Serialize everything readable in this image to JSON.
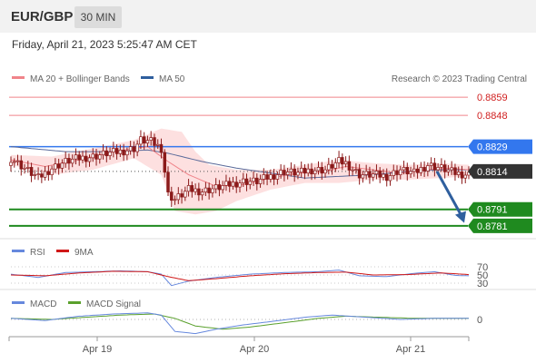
{
  "header": {
    "pair": "EUR/GBP",
    "timeframe": "30 MIN",
    "datetime": "Friday, April 21, 2023 5:25:47 AM CET"
  },
  "legend": {
    "ma20": "MA 20 + Bollinger Bands",
    "ma50": "MA 50",
    "credit": "Research © 2023 Trading Central",
    "rsi": "RSI",
    "rsi_ma": "9MA",
    "macd": "MACD",
    "macd_signal": "MACD Signal"
  },
  "colors": {
    "resistance": "#f0848a",
    "pivot": "#3377ee",
    "support": "#1f8a1f",
    "current": "#333333",
    "ma20": "#f0848a",
    "ma50": "#5a6a9a",
    "band": "#fde0e0",
    "candle": "#8b1a1a",
    "arrow": "#2f5f9e",
    "rsi": "#6688dd",
    "rsi_ma": "#d01818",
    "macd": "#6688dd",
    "macd_signal": "#5aa02c"
  },
  "chart_data": {
    "type": "candlestick",
    "instrument": "EUR/GBP",
    "timeframe": "30 MIN",
    "x_ticks": [
      "Apr 19",
      "Apr 20",
      "Apr 21"
    ],
    "price_range": [
      0.8776,
      0.8864
    ],
    "levels": [
      {
        "value": 0.8859,
        "label": "0.8859",
        "kind": "resistance"
      },
      {
        "value": 0.8848,
        "label": "0.8848",
        "kind": "resistance"
      },
      {
        "value": 0.8829,
        "label": "0.8829",
        "kind": "pivot"
      },
      {
        "value": 0.8814,
        "label": "0.8814",
        "kind": "current"
      },
      {
        "value": 0.8791,
        "label": "0.8791",
        "kind": "support"
      },
      {
        "value": 0.8781,
        "label": "0.8781",
        "kind": "support"
      }
    ],
    "price_path": [
      [
        0,
        0.8822
      ],
      [
        4,
        0.8816
      ],
      [
        8,
        0.881
      ],
      [
        12,
        0.8816
      ],
      [
        16,
        0.882
      ],
      [
        20,
        0.8822
      ],
      [
        24,
        0.8823
      ],
      [
        28,
        0.8825
      ],
      [
        32,
        0.8826
      ],
      [
        36,
        0.8828
      ],
      [
        38,
        0.8833
      ],
      [
        41,
        0.8832
      ],
      [
        44,
        0.8828
      ],
      [
        46,
        0.88
      ],
      [
        48,
        0.8797
      ],
      [
        52,
        0.8803
      ],
      [
        56,
        0.8802
      ],
      [
        60,
        0.8804
      ],
      [
        64,
        0.8806
      ],
      [
        68,
        0.8808
      ],
      [
        72,
        0.8808
      ],
      [
        76,
        0.8811
      ],
      [
        80,
        0.8814
      ],
      [
        84,
        0.8813
      ],
      [
        88,
        0.8815
      ],
      [
        92,
        0.8815
      ],
      [
        96,
        0.882
      ],
      [
        98,
        0.8819
      ],
      [
        102,
        0.8812
      ],
      [
        106,
        0.8812
      ],
      [
        110,
        0.8811
      ],
      [
        114,
        0.8815
      ],
      [
        118,
        0.8813
      ],
      [
        122,
        0.8818
      ],
      [
        126,
        0.8816
      ],
      [
        130,
        0.8813
      ],
      [
        134,
        0.8812
      ]
    ],
    "ma20_path": [
      [
        0,
        0.8821
      ],
      [
        10,
        0.8817
      ],
      [
        20,
        0.8821
      ],
      [
        30,
        0.8826
      ],
      [
        40,
        0.8829
      ],
      [
        46,
        0.882
      ],
      [
        52,
        0.8812
      ],
      [
        60,
        0.8805
      ],
      [
        68,
        0.8806
      ],
      [
        76,
        0.881
      ],
      [
        84,
        0.8813
      ],
      [
        92,
        0.8814
      ],
      [
        98,
        0.8817
      ],
      [
        106,
        0.8815
      ],
      [
        114,
        0.8813
      ],
      [
        122,
        0.8815
      ],
      [
        128,
        0.8816
      ],
      [
        134,
        0.8815
      ]
    ],
    "ma50_path": [
      [
        0,
        0.8829
      ],
      [
        16,
        0.8826
      ],
      [
        30,
        0.8826
      ],
      [
        40,
        0.8827
      ],
      [
        46,
        0.8825
      ],
      [
        56,
        0.882
      ],
      [
        66,
        0.8816
      ],
      [
        76,
        0.8813
      ],
      [
        86,
        0.881
      ],
      [
        96,
        0.8811
      ],
      [
        106,
        0.8812
      ],
      [
        116,
        0.8814
      ],
      [
        126,
        0.8815
      ],
      [
        134,
        0.8815
      ]
    ],
    "band_upper": [
      [
        0,
        0.8824
      ],
      [
        12,
        0.8823
      ],
      [
        24,
        0.8828
      ],
      [
        36,
        0.8833
      ],
      [
        44,
        0.884
      ],
      [
        50,
        0.8838
      ],
      [
        54,
        0.8826
      ],
      [
        58,
        0.8818
      ],
      [
        66,
        0.8815
      ],
      [
        76,
        0.8815
      ],
      [
        86,
        0.8818
      ],
      [
        96,
        0.8821
      ],
      [
        106,
        0.8819
      ],
      [
        116,
        0.8818
      ],
      [
        126,
        0.8819
      ],
      [
        134,
        0.8818
      ]
    ],
    "band_lower": [
      [
        0,
        0.8818
      ],
      [
        12,
        0.8812
      ],
      [
        24,
        0.8815
      ],
      [
        36,
        0.8822
      ],
      [
        44,
        0.8812
      ],
      [
        48,
        0.879
      ],
      [
        54,
        0.8788
      ],
      [
        60,
        0.879
      ],
      [
        66,
        0.8796
      ],
      [
        76,
        0.8803
      ],
      [
        86,
        0.8807
      ],
      [
        96,
        0.8807
      ],
      [
        106,
        0.8809
      ],
      [
        116,
        0.8809
      ],
      [
        126,
        0.881
      ],
      [
        134,
        0.8811
      ]
    ],
    "forecast": {
      "from": 0.8814,
      "to": 0.8785
    },
    "rsi": {
      "levels": [
        70,
        50,
        30
      ],
      "rsi_path": [
        [
          0,
          52
        ],
        [
          8,
          44
        ],
        [
          16,
          56
        ],
        [
          24,
          58
        ],
        [
          32,
          60
        ],
        [
          40,
          58
        ],
        [
          44,
          52
        ],
        [
          47,
          24
        ],
        [
          52,
          35
        ],
        [
          60,
          44
        ],
        [
          70,
          52
        ],
        [
          80,
          56
        ],
        [
          90,
          58
        ],
        [
          96,
          62
        ],
        [
          102,
          48
        ],
        [
          110,
          46
        ],
        [
          118,
          54
        ],
        [
          124,
          58
        ],
        [
          130,
          49
        ],
        [
          134,
          48
        ]
      ],
      "rsi_ma_path": [
        [
          0,
          50
        ],
        [
          10,
          48
        ],
        [
          20,
          55
        ],
        [
          30,
          59
        ],
        [
          40,
          58
        ],
        [
          46,
          46
        ],
        [
          52,
          36
        ],
        [
          60,
          41
        ],
        [
          70,
          48
        ],
        [
          80,
          53
        ],
        [
          90,
          56
        ],
        [
          98,
          57
        ],
        [
          106,
          50
        ],
        [
          116,
          51
        ],
        [
          126,
          55
        ],
        [
          134,
          51
        ]
      ]
    },
    "macd": {
      "zero_label": "0",
      "macd_path": [
        [
          0,
          0.0001
        ],
        [
          10,
          -0.0001
        ],
        [
          20,
          0.0003
        ],
        [
          30,
          0.0005
        ],
        [
          40,
          0.0006
        ],
        [
          44,
          0.0004
        ],
        [
          48,
          -0.0011
        ],
        [
          54,
          -0.0013
        ],
        [
          60,
          -0.0009
        ],
        [
          68,
          -0.0005
        ],
        [
          76,
          -0.0002
        ],
        [
          86,
          0.0002
        ],
        [
          94,
          0.0004
        ],
        [
          104,
          0.0002
        ],
        [
          114,
          0.0
        ],
        [
          124,
          0.0001
        ],
        [
          134,
          0.0001
        ]
      ],
      "signal_path": [
        [
          0,
          0.0001
        ],
        [
          12,
          0.0
        ],
        [
          22,
          0.0002
        ],
        [
          32,
          0.0004
        ],
        [
          42,
          0.0005
        ],
        [
          48,
          0.0001
        ],
        [
          54,
          -0.0006
        ],
        [
          62,
          -0.0009
        ],
        [
          70,
          -0.0007
        ],
        [
          80,
          -0.0003
        ],
        [
          90,
          0.0001
        ],
        [
          98,
          0.0003
        ],
        [
          108,
          0.0002
        ],
        [
          118,
          0.0001
        ],
        [
          128,
          0.0001
        ],
        [
          134,
          0.0001
        ]
      ]
    }
  }
}
